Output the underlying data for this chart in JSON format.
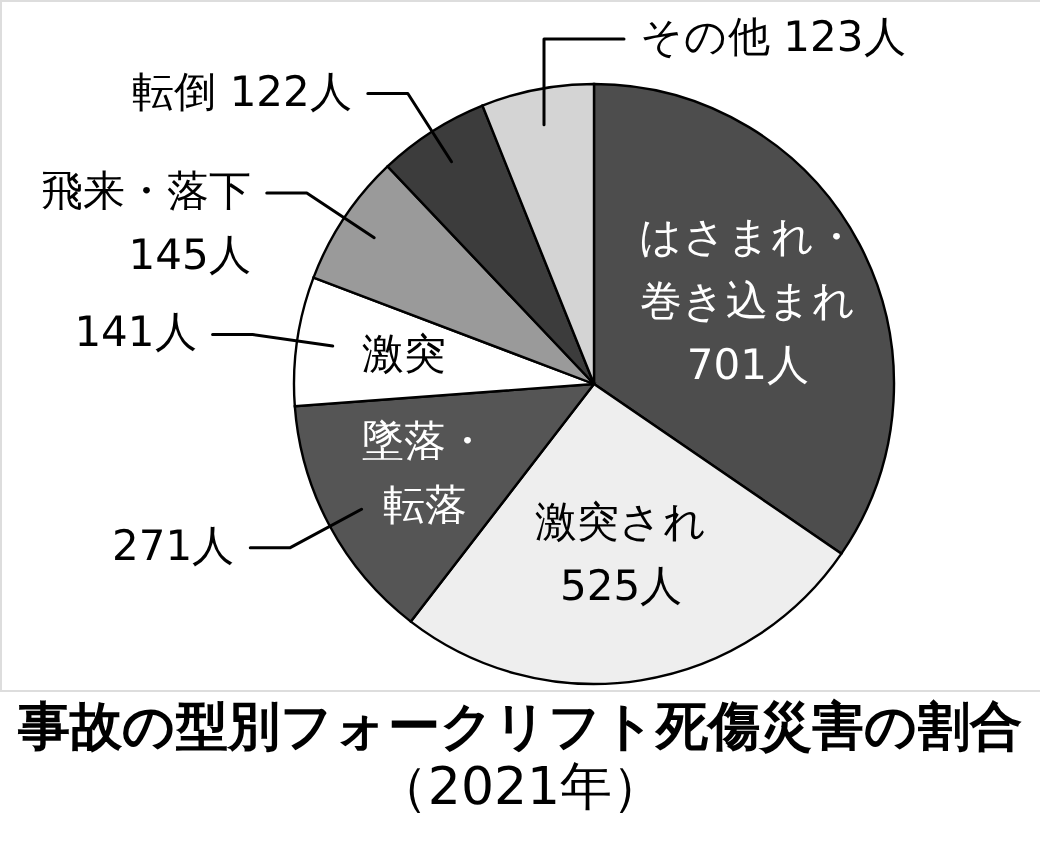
{
  "chart_data": {
    "type": "pie",
    "title": "事故の型別フォークリフト死傷災害の割合",
    "subtitle": "（2021年）",
    "categories": [
      "はさまれ・巻き込まれ",
      "激突され",
      "墜落・転落",
      "激突",
      "飛来・落下",
      "転倒",
      "その他"
    ],
    "values": [
      701,
      525,
      271,
      141,
      145,
      122,
      123
    ],
    "colors": [
      "#4d4d4d",
      "#eeeeee",
      "#555555",
      "#ffffff",
      "#9a9a9a",
      "#3c3c3c",
      "#d4d4d4"
    ],
    "value_labels": [
      "701人",
      "525人",
      "271人",
      "141人",
      "145人",
      "122人",
      "123人"
    ]
  }
}
